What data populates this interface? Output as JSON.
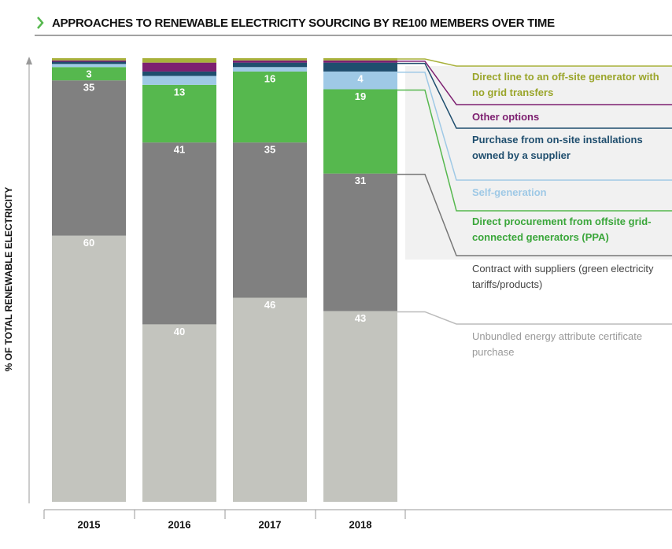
{
  "chart_data": {
    "type": "stacked-bar",
    "title": "APPROACHES TO RENEWABLE ELECTRICITY SOURCING BY RE100 MEMBERS OVER TIME",
    "y_label": "% OF TOTAL RENEWABLE ELECTRICITY",
    "categories": [
      "2015",
      "2016",
      "2017",
      "2018"
    ],
    "ylim": [
      0,
      100
    ],
    "series": [
      {
        "name": "Unbundled energy attribute certificate purchase",
        "color": "#c3c4be",
        "values": [
          60,
          40,
          46,
          43
        ],
        "value_labels": [
          "60",
          "40",
          "46",
          "43"
        ]
      },
      {
        "name": "Contract with suppliers (green electricity tariffs/products)",
        "color": "#808080",
        "values": [
          35,
          41,
          35,
          31
        ],
        "value_labels": [
          "35",
          "41",
          "35",
          "31"
        ]
      },
      {
        "name": "Direct procurement from offsite grid-connected generators (PPA)",
        "color": "#56b84e",
        "values": [
          3,
          13,
          16,
          19
        ],
        "value_labels": [
          "3",
          "13",
          "16",
          "19"
        ]
      },
      {
        "name": "Self-generation",
        "color": "#9fc9e6",
        "values": [
          0.7,
          2,
          1,
          4
        ],
        "value_labels": [
          null,
          null,
          null,
          "4"
        ]
      },
      {
        "name": "Purchase from on-site installations owned by a supplier",
        "color": "#1f4e6e",
        "values": [
          0.5,
          1,
          1,
          2
        ],
        "value_labels": [
          null,
          null,
          null,
          null
        ]
      },
      {
        "name": "Other options",
        "color": "#7d1f70",
        "values": [
          0.3,
          2,
          0.5,
          0.5
        ],
        "value_labels": [
          null,
          null,
          null,
          null
        ]
      },
      {
        "name": "Direct line to an off-site generator with no grid transfers",
        "color": "#a8b13a",
        "values": [
          0.5,
          1,
          0.5,
          0.5
        ],
        "value_labels": [
          null,
          null,
          null,
          null
        ]
      }
    ]
  }
}
